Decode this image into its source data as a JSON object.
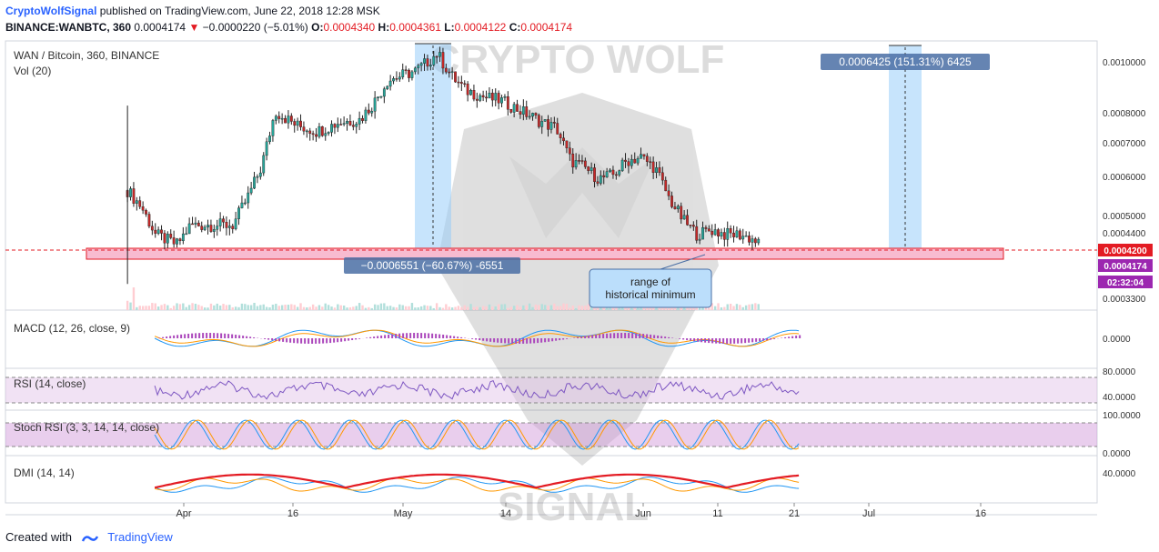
{
  "header": {
    "brand": "CryptoWolfSignal",
    "published": "published on TradingView.com, June 22, 2018 12:28 MSK",
    "symbol_line": "BINANCE:WANBTC, 360",
    "last": "0.0004174",
    "change": "−0.0000220 (−5.01%)",
    "o_label": "O:",
    "o": "0.0004340",
    "h_label": "H:",
    "h": "0.0004361",
    "l_label": "L:",
    "l": "0.0004122",
    "c_label": "C:",
    "c": "0.0004174"
  },
  "watermark": {
    "top": "CRYPTO WOLF",
    "bottom": "SIGNAL"
  },
  "pane_labels": {
    "main": "WAN / Bitcoin, 360, BINANCE",
    "vol": "Vol (20)",
    "macd": "MACD (12, 26, close, 9)",
    "rsi": "RSI (14, close)",
    "stoch": "Stoch RSI (3, 3, 14, 14, close)",
    "dmi": "DMI (14, 14)"
  },
  "price_axis_labels": [
    "0.0010000",
    "0.0008000",
    "0.0007000",
    "0.0006000",
    "0.0005000",
    "0.0004400",
    "0.0003300"
  ],
  "price_tags": {
    "support": "0.0004200",
    "last": "0.0004174",
    "countdown": "02:32:04"
  },
  "sub_axis_labels": {
    "macd": [
      "0.0000"
    ],
    "rsi": [
      "80.0000",
      "40.0000"
    ],
    "stoch": [
      "100.0000",
      "0.0000"
    ],
    "dmi": [
      "40.0000"
    ]
  },
  "annotations": {
    "drop": "−0.0006551 (−60.67%) -6551",
    "rise": "0.0006425 (151.31%) 6425",
    "range_line1": "range of",
    "range_line2": "historical minimum"
  },
  "colors": {
    "up": "#26a69a",
    "down": "#c62828",
    "support": "#e31b23",
    "macd": "#2196f3",
    "signal": "#ff9800",
    "rsi": "#7e57c2",
    "stoch_k": "#2196f3",
    "stoch_d": "#ff9800",
    "dmi_plus": "#2196f3",
    "dmi_minus": "#ff9800",
    "adx": "#e31b23",
    "last_tag": "#9c27b0",
    "measure": "#4a6fa5"
  },
  "footer": {
    "created_with": "Created with",
    "tradingview": "TradingView"
  },
  "chart_data": {
    "type": "candlestick",
    "title": "WAN / Bitcoin, 360, BINANCE",
    "ylabel": "",
    "ylim": [
      0.00031,
      0.00108
    ],
    "y_scale": "log",
    "x_ticks": [
      "Apr",
      "16",
      "May",
      "14",
      "Jun",
      "11",
      "21",
      "Jul",
      "16"
    ],
    "series": [
      {
        "name": "WAN / Bitcoin",
        "points": [
          [
            "Mar 24",
            0.00054
          ],
          [
            "Mar 26",
            0.0005
          ],
          [
            "Mar 28",
            0.00044
          ],
          [
            "Mar 31",
            0.00042
          ],
          [
            "Apr 2",
            0.00046
          ],
          [
            "Apr 5",
            0.00046
          ],
          [
            "Apr 8",
            0.00046
          ],
          [
            "Apr 10",
            0.00052
          ],
          [
            "Apr 12",
            0.0006
          ],
          [
            "Apr 14",
            0.00078
          ],
          [
            "Apr 17",
            0.00073
          ],
          [
            "Apr 20",
            0.00071
          ],
          [
            "Apr 23",
            0.00074
          ],
          [
            "Apr 26",
            0.00075
          ],
          [
            "Apr 28",
            0.00081
          ],
          [
            "Apr 30",
            0.0009
          ],
          [
            "May 2",
            0.00092
          ],
          [
            "May 4",
            0.00094
          ],
          [
            "May 6",
            0.00099
          ],
          [
            "May 7",
            0.00102
          ],
          [
            "May 9",
            0.00092
          ],
          [
            "May 11",
            0.00086
          ],
          [
            "May 14",
            0.00083
          ],
          [
            "May 16",
            0.00082
          ],
          [
            "May 19",
            0.00078
          ],
          [
            "May 22",
            0.00074
          ],
          [
            "May 24",
            0.00072
          ],
          [
            "May 26",
            0.00062
          ],
          [
            "May 28",
            0.0006
          ],
          [
            "May 30",
            0.00057
          ],
          [
            "Jun 1",
            0.00058
          ],
          [
            "Jun 3",
            0.00062
          ],
          [
            "Jun 5",
            0.00063
          ],
          [
            "Jun 7",
            0.0006
          ],
          [
            "Jun 9",
            0.00052
          ],
          [
            "Jun 11",
            0.00047
          ],
          [
            "Jun 13",
            0.00044
          ],
          [
            "Jun 15",
            0.00045
          ],
          [
            "Jun 17",
            0.00044
          ],
          [
            "Jun 19",
            0.00044
          ],
          [
            "Jun 21",
            0.00043
          ],
          [
            "Jun 22",
            0.0004174
          ]
        ]
      }
    ],
    "support_band": [
      0.00041,
      0.00042
    ],
    "measure_drop": {
      "from": 0.00108,
      "to": 0.00042,
      "change": "−0.0006551 (−60.67%)"
    },
    "measure_rise": {
      "from": 0.00042,
      "to": 0.00106,
      "change": "0.0006425 (151.31%)"
    },
    "indicators": [
      "Vol (20)",
      "MACD (12, 26, close, 9)",
      "RSI (14, close)",
      "Stoch RSI (3, 3, 14, 14, close)",
      "DMI (14, 14)"
    ],
    "grid": true
  }
}
